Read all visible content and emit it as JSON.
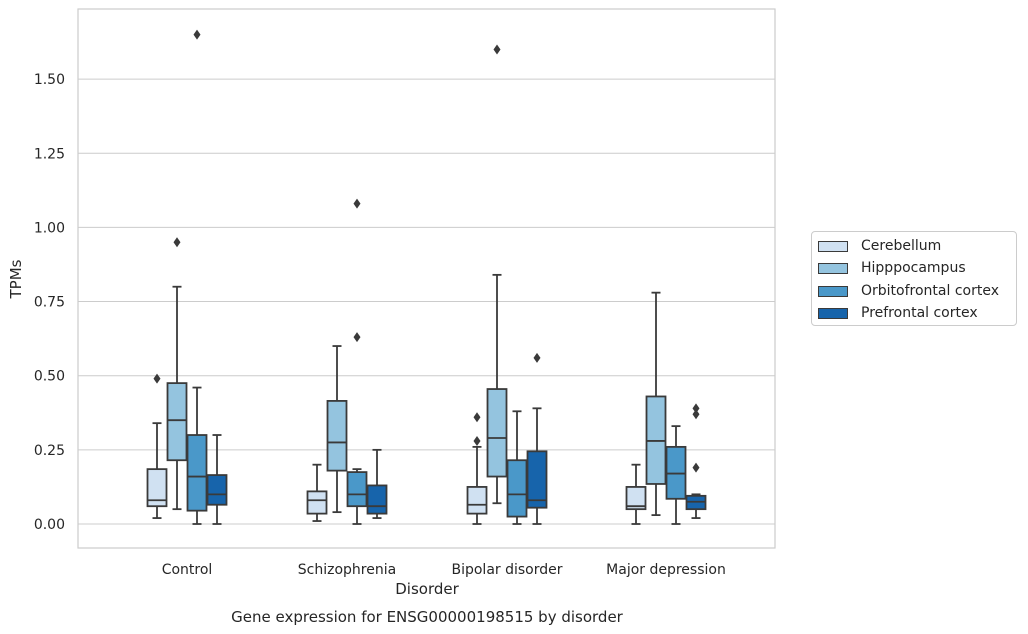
{
  "chart_data": {
    "type": "box",
    "title": "Gene expression for ENSG00000198515 by disorder",
    "xlabel": "Disorder",
    "ylabel": "TPMs",
    "ylim": [
      -0.08,
      1.73
    ],
    "yticks": [
      "0.00",
      "0.25",
      "0.50",
      "0.75",
      "1.00",
      "1.25",
      "1.50"
    ],
    "ytick_values": [
      0,
      0.25,
      0.5,
      0.75,
      1.0,
      1.25,
      1.5
    ],
    "categories": [
      "Control",
      "Schizophrenia",
      "Bipolar disorder",
      "Major depression"
    ],
    "grid": true,
    "legend_position": "right",
    "series": [
      {
        "name": "Cerebellum",
        "color": "#d0e1f2",
        "boxes": [
          {
            "whisker_low": 0.02,
            "q1": 0.06,
            "median": 0.08,
            "q3": 0.185,
            "whisker_high": 0.34,
            "outliers": [
              0.49
            ]
          },
          {
            "whisker_low": 0.01,
            "q1": 0.035,
            "median": 0.08,
            "q3": 0.11,
            "whisker_high": 0.2,
            "outliers": []
          },
          {
            "whisker_low": 0.0,
            "q1": 0.035,
            "median": 0.065,
            "q3": 0.125,
            "whisker_high": 0.26,
            "outliers": [
              0.28,
              0.36
            ]
          },
          {
            "whisker_low": 0.0,
            "q1": 0.05,
            "median": 0.06,
            "q3": 0.125,
            "whisker_high": 0.2,
            "outliers": []
          }
        ]
      },
      {
        "name": "Hipppocampus",
        "color": "#94c4df",
        "boxes": [
          {
            "whisker_low": 0.05,
            "q1": 0.215,
            "median": 0.35,
            "q3": 0.475,
            "whisker_high": 0.8,
            "outliers": [
              0.95
            ]
          },
          {
            "whisker_low": 0.04,
            "q1": 0.18,
            "median": 0.275,
            "q3": 0.415,
            "whisker_high": 0.6,
            "outliers": []
          },
          {
            "whisker_low": 0.07,
            "q1": 0.16,
            "median": 0.29,
            "q3": 0.455,
            "whisker_high": 0.84,
            "outliers": [
              1.6
            ]
          },
          {
            "whisker_low": 0.03,
            "q1": 0.135,
            "median": 0.28,
            "q3": 0.43,
            "whisker_high": 0.78,
            "outliers": []
          }
        ]
      },
      {
        "name": "Orbitofrontal cortex",
        "color": "#4a98c9",
        "boxes": [
          {
            "whisker_low": 0.0,
            "q1": 0.045,
            "median": 0.16,
            "q3": 0.3,
            "whisker_high": 0.46,
            "outliers": [
              1.65
            ]
          },
          {
            "whisker_low": 0.0,
            "q1": 0.06,
            "median": 0.1,
            "q3": 0.175,
            "whisker_high": 0.185,
            "outliers": [
              0.63,
              1.08
            ]
          },
          {
            "whisker_low": 0.0,
            "q1": 0.025,
            "median": 0.1,
            "q3": 0.215,
            "whisker_high": 0.38,
            "outliers": []
          },
          {
            "whisker_low": 0.0,
            "q1": 0.085,
            "median": 0.17,
            "q3": 0.26,
            "whisker_high": 0.33,
            "outliers": []
          }
        ]
      },
      {
        "name": "Prefrontal cortex",
        "color": "#1764ab",
        "boxes": [
          {
            "whisker_low": 0.0,
            "q1": 0.065,
            "median": 0.1,
            "q3": 0.165,
            "whisker_high": 0.3,
            "outliers": []
          },
          {
            "whisker_low": 0.02,
            "q1": 0.035,
            "median": 0.06,
            "q3": 0.13,
            "whisker_high": 0.25,
            "outliers": []
          },
          {
            "whisker_low": 0.0,
            "q1": 0.055,
            "median": 0.08,
            "q3": 0.245,
            "whisker_high": 0.39,
            "outliers": [
              0.56
            ]
          },
          {
            "whisker_low": 0.02,
            "q1": 0.05,
            "median": 0.075,
            "q3": 0.095,
            "whisker_high": 0.1,
            "outliers": [
              0.19,
              0.37,
              0.39
            ]
          }
        ]
      }
    ]
  }
}
